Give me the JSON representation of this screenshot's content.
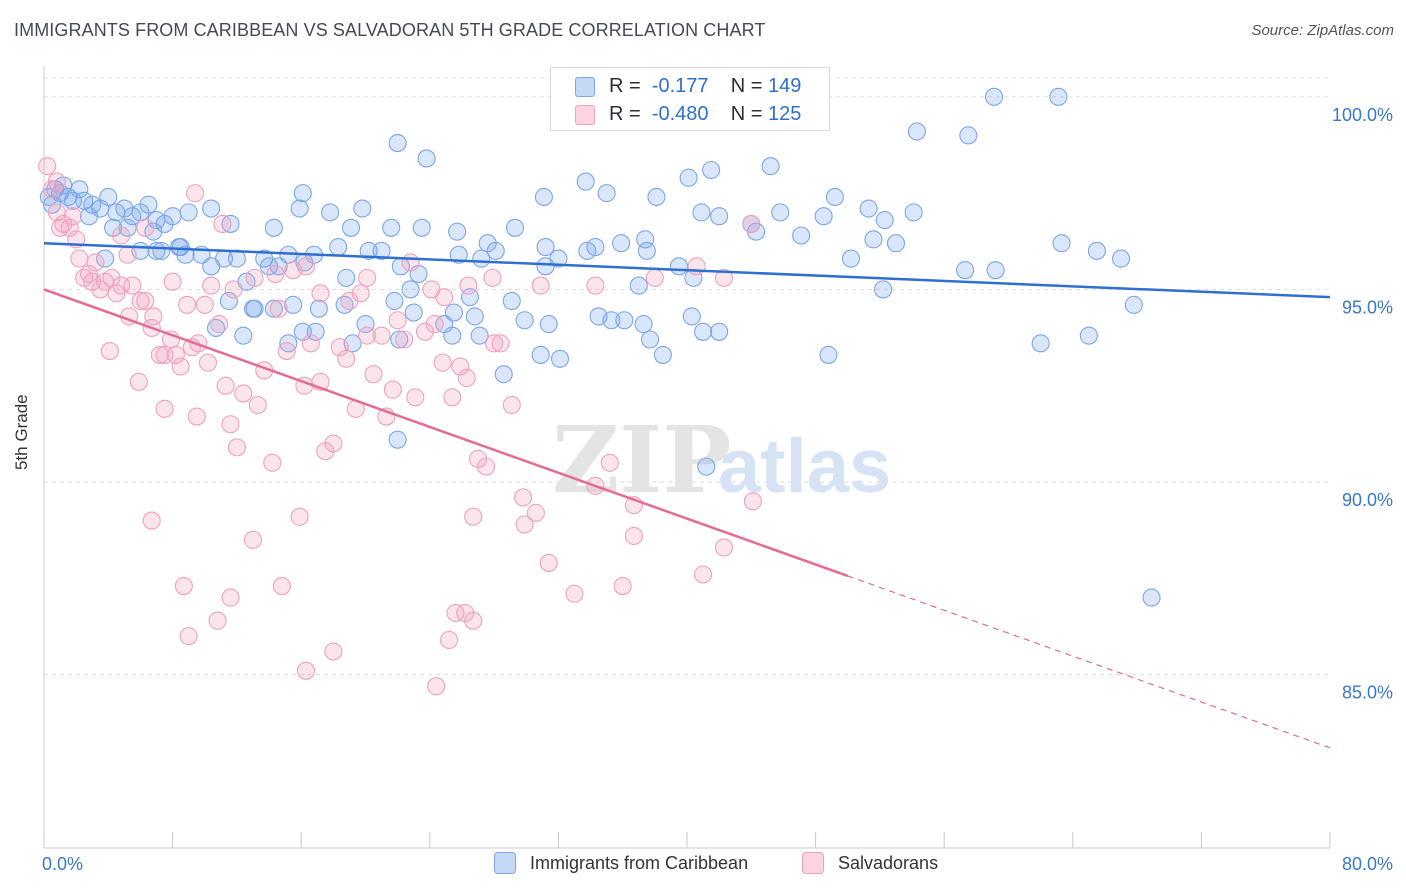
{
  "header": {
    "title": "IMMIGRANTS FROM CARIBBEAN VS SALVADORAN 5TH GRADE CORRELATION CHART",
    "source": "Source: ZipAtlas.com"
  },
  "watermark": {
    "zip": "ZIP",
    "atlas": "atlas"
  },
  "legend_top": {
    "rows": [
      {
        "r_label": "R =",
        "r_value": "-0.177",
        "n_label": "N =",
        "n_value": "149",
        "color": "#7aa7e8"
      },
      {
        "r_label": "R =",
        "r_value": "-0.480",
        "n_label": "N =",
        "n_value": "125",
        "color": "#f0a0bd"
      }
    ]
  },
  "legend_bottom": {
    "items": [
      {
        "label": "Immigrants from Caribbean",
        "color": "#7aa7e8"
      },
      {
        "label": "Salvadorans",
        "color": "#f0a0bd"
      }
    ]
  },
  "chart_data": {
    "type": "scatter",
    "title": "IMMIGRANTS FROM CARIBBEAN VS SALVADORAN 5TH GRADE CORRELATION CHART",
    "xlabel": "",
    "ylabel": "5th Grade",
    "xlim": [
      0,
      80
    ],
    "ylim": [
      80.5,
      100.8
    ],
    "x_tick_labels": [
      "0.0%",
      "80.0%"
    ],
    "y_ticks": [
      85,
      90,
      95,
      100
    ],
    "y_tick_labels": [
      "85.0%",
      "90.0%",
      "95.0%",
      "100.0%"
    ],
    "grid": true,
    "series": [
      {
        "name": "Immigrants from Caribbean",
        "color": "#7aa7e8",
        "trend": {
          "x": [
            0,
            80
          ],
          "y": [
            96.2,
            94.8
          ],
          "dashed_after": 80
        },
        "points": [
          [
            0.3,
            97.4
          ],
          [
            0.5,
            97.2
          ],
          [
            0.7,
            97.6
          ],
          [
            1.0,
            97.5
          ],
          [
            1.2,
            97.7
          ],
          [
            1.5,
            97.4
          ],
          [
            1.8,
            97.3
          ],
          [
            2.2,
            97.6
          ],
          [
            2.5,
            97.3
          ],
          [
            3.0,
            97.2
          ],
          [
            3.5,
            97.1
          ],
          [
            4.0,
            97.4
          ],
          [
            4.5,
            97.0
          ],
          [
            5.0,
            97.1
          ],
          [
            5.5,
            96.9
          ],
          [
            6.0,
            97.0
          ],
          [
            6.5,
            97.2
          ],
          [
            7.0,
            96.8
          ],
          [
            7.5,
            96.7
          ],
          [
            8.0,
            96.9
          ],
          [
            8.5,
            96.1
          ],
          [
            9.0,
            97.0
          ],
          [
            2.8,
            96.9
          ],
          [
            4.3,
            96.6
          ],
          [
            5.2,
            96.6
          ],
          [
            6.8,
            96.5
          ],
          [
            3.8,
            95.8
          ],
          [
            7.3,
            96.0
          ],
          [
            8.8,
            95.9
          ],
          [
            9.8,
            95.9
          ],
          [
            10.4,
            95.6
          ],
          [
            11.2,
            95.8
          ],
          [
            12.0,
            95.8
          ],
          [
            13.7,
            95.8
          ],
          [
            14.6,
            95.6
          ],
          [
            15.2,
            95.9
          ],
          [
            16.8,
            95.9
          ],
          [
            18.3,
            96.1
          ],
          [
            20.2,
            96.0
          ],
          [
            21.0,
            96.0
          ],
          [
            22.2,
            95.6
          ],
          [
            23.3,
            95.4
          ],
          [
            25.8,
            95.9
          ],
          [
            27.2,
            95.8
          ],
          [
            28.1,
            96.0
          ],
          [
            31.2,
            95.6
          ],
          [
            32.0,
            95.8
          ],
          [
            33.8,
            96.0
          ],
          [
            35.9,
            96.2
          ],
          [
            37.5,
            96.0
          ],
          [
            40.4,
            95.3
          ],
          [
            12.6,
            95.2
          ],
          [
            14.0,
            95.6
          ],
          [
            16.2,
            95.7
          ],
          [
            18.8,
            95.3
          ],
          [
            22.8,
            95.0
          ],
          [
            26.5,
            94.8
          ],
          [
            29.1,
            94.7
          ],
          [
            34.5,
            94.3
          ],
          [
            37.0,
            95.1
          ],
          [
            11.5,
            94.7
          ],
          [
            13.1,
            94.5
          ],
          [
            14.3,
            94.5
          ],
          [
            15.5,
            94.6
          ],
          [
            17.1,
            94.5
          ],
          [
            18.7,
            94.6
          ],
          [
            20.0,
            94.1
          ],
          [
            21.8,
            94.7
          ],
          [
            23.0,
            94.4
          ],
          [
            24.9,
            94.1
          ],
          [
            26.8,
            94.3
          ],
          [
            29.9,
            94.2
          ],
          [
            31.4,
            94.1
          ],
          [
            35.3,
            94.2
          ],
          [
            37.7,
            93.7
          ],
          [
            40.3,
            94.3
          ],
          [
            41.0,
            93.9
          ],
          [
            10.7,
            94.0
          ],
          [
            12.4,
            93.8
          ],
          [
            13.0,
            94.5
          ],
          [
            15.2,
            93.6
          ],
          [
            16.1,
            93.9
          ],
          [
            16.9,
            93.9
          ],
          [
            19.2,
            93.6
          ],
          [
            22.1,
            93.7
          ],
          [
            25.4,
            93.8
          ],
          [
            27.1,
            93.8
          ],
          [
            28.6,
            92.8
          ],
          [
            30.9,
            93.3
          ],
          [
            32.1,
            93.2
          ],
          [
            38.5,
            93.3
          ],
          [
            48.8,
            93.3
          ],
          [
            62.0,
            93.6
          ],
          [
            65.0,
            93.8
          ],
          [
            67.8,
            94.6
          ],
          [
            52.2,
            95.0
          ],
          [
            57.3,
            95.5
          ],
          [
            59.2,
            95.5
          ],
          [
            63.3,
            96.2
          ],
          [
            65.5,
            96.0
          ],
          [
            67.0,
            95.8
          ],
          [
            51.6,
            96.3
          ],
          [
            50.2,
            95.8
          ],
          [
            53.0,
            96.2
          ],
          [
            47.1,
            96.4
          ],
          [
            44.3,
            96.5
          ],
          [
            42.0,
            96.9
          ],
          [
            40.9,
            97.0
          ],
          [
            39.5,
            95.6
          ],
          [
            37.4,
            96.3
          ],
          [
            34.3,
            96.1
          ],
          [
            31.2,
            96.1
          ],
          [
            29.3,
            96.6
          ],
          [
            27.6,
            96.2
          ],
          [
            25.7,
            96.5
          ],
          [
            23.5,
            96.6
          ],
          [
            21.6,
            96.6
          ],
          [
            19.1,
            96.6
          ],
          [
            17.8,
            97.0
          ],
          [
            15.9,
            97.1
          ],
          [
            14.3,
            96.6
          ],
          [
            44.0,
            96.7
          ],
          [
            45.8,
            97.0
          ],
          [
            48.5,
            96.9
          ],
          [
            49.2,
            97.4
          ],
          [
            51.3,
            97.1
          ],
          [
            52.3,
            96.8
          ],
          [
            54.1,
            97.0
          ],
          [
            54.3,
            99.1
          ],
          [
            57.5,
            99.0
          ],
          [
            63.1,
            100.0
          ],
          [
            59.1,
            100.0
          ],
          [
            45.2,
            98.2
          ],
          [
            41.5,
            98.1
          ],
          [
            40.1,
            97.9
          ],
          [
            38.1,
            97.4
          ],
          [
            35.0,
            97.5
          ],
          [
            33.7,
            97.8
          ],
          [
            31.1,
            97.4
          ],
          [
            23.8,
            98.4
          ],
          [
            22.0,
            98.8
          ],
          [
            19.8,
            97.1
          ],
          [
            16.1,
            97.5
          ],
          [
            11.6,
            96.7
          ],
          [
            10.4,
            97.1
          ],
          [
            8.4,
            96.1
          ],
          [
            7.0,
            96.0
          ],
          [
            6.0,
            96.0
          ],
          [
            41.2,
            90.4
          ],
          [
            68.9,
            87.0
          ],
          [
            22.0,
            91.1
          ],
          [
            25.5,
            94.4
          ],
          [
            36.1,
            94.2
          ],
          [
            37.3,
            94.1
          ],
          [
            42.0,
            93.9
          ]
        ]
      },
      {
        "name": "Salvadorans",
        "color": "#f0a0bd",
        "trend": {
          "x": [
            0,
            80
          ],
          "y": [
            95.0,
            83.1
          ],
          "solid_to": 50
        },
        "points": [
          [
            0.2,
            98.2
          ],
          [
            0.5,
            97.6
          ],
          [
            0.8,
            97.0
          ],
          [
            1.0,
            96.6
          ],
          [
            1.2,
            96.7
          ],
          [
            1.6,
            96.6
          ],
          [
            1.8,
            96.9
          ],
          [
            2.0,
            96.3
          ],
          [
            2.2,
            95.8
          ],
          [
            2.5,
            95.3
          ],
          [
            2.8,
            95.4
          ],
          [
            3.0,
            95.2
          ],
          [
            3.2,
            95.7
          ],
          [
            3.5,
            95.0
          ],
          [
            3.8,
            95.2
          ],
          [
            4.2,
            95.3
          ],
          [
            4.5,
            94.9
          ],
          [
            4.8,
            95.1
          ],
          [
            5.2,
            95.9
          ],
          [
            5.5,
            95.1
          ],
          [
            6.0,
            94.7
          ],
          [
            6.3,
            94.7
          ],
          [
            6.8,
            94.3
          ],
          [
            7.2,
            93.3
          ],
          [
            7.5,
            93.3
          ],
          [
            7.9,
            93.7
          ],
          [
            8.2,
            93.3
          ],
          [
            8.5,
            93.0
          ],
          [
            8.9,
            94.6
          ],
          [
            9.2,
            93.5
          ],
          [
            9.6,
            93.6
          ],
          [
            10.2,
            93.1
          ],
          [
            10.4,
            95.1
          ],
          [
            10.9,
            94.1
          ],
          [
            11.3,
            92.5
          ],
          [
            11.6,
            91.5
          ],
          [
            12.0,
            90.9
          ],
          [
            12.4,
            92.3
          ],
          [
            13.3,
            92.0
          ],
          [
            13.7,
            92.9
          ],
          [
            14.2,
            90.5
          ],
          [
            14.6,
            94.5
          ],
          [
            15.1,
            93.4
          ],
          [
            15.5,
            95.5
          ],
          [
            16.2,
            92.5
          ],
          [
            16.6,
            93.6
          ],
          [
            17.2,
            92.6
          ],
          [
            17.5,
            90.8
          ],
          [
            18.0,
            91.0
          ],
          [
            18.4,
            93.5
          ],
          [
            18.8,
            93.2
          ],
          [
            19.4,
            91.9
          ],
          [
            19.7,
            94.9
          ],
          [
            20.1,
            93.8
          ],
          [
            20.5,
            92.8
          ],
          [
            21.0,
            93.8
          ],
          [
            21.3,
            91.7
          ],
          [
            21.7,
            92.4
          ],
          [
            22.0,
            94.2
          ],
          [
            22.4,
            93.7
          ],
          [
            23.1,
            92.2
          ],
          [
            23.7,
            93.9
          ],
          [
            24.3,
            94.1
          ],
          [
            24.8,
            93.1
          ],
          [
            25.4,
            92.2
          ],
          [
            25.9,
            93.0
          ],
          [
            26.3,
            92.7
          ],
          [
            26.7,
            89.1
          ],
          [
            27.0,
            90.6
          ],
          [
            27.5,
            90.4
          ],
          [
            28.0,
            93.6
          ],
          [
            28.4,
            93.6
          ],
          [
            29.1,
            92.0
          ],
          [
            29.9,
            88.9
          ],
          [
            30.6,
            89.2
          ],
          [
            31.4,
            87.9
          ],
          [
            33.0,
            87.1
          ],
          [
            35.2,
            90.5
          ],
          [
            36.0,
            87.3
          ],
          [
            36.7,
            88.6
          ],
          [
            41.0,
            87.6
          ],
          [
            42.3,
            88.3
          ],
          [
            44.1,
            89.5
          ],
          [
            36.7,
            89.4
          ],
          [
            34.3,
            89.9
          ],
          [
            29.8,
            89.6
          ],
          [
            26.2,
            86.6
          ],
          [
            26.7,
            86.4
          ],
          [
            25.6,
            86.6
          ],
          [
            25.2,
            85.9
          ],
          [
            24.4,
            84.7
          ],
          [
            18.0,
            85.6
          ],
          [
            16.3,
            85.1
          ],
          [
            15.9,
            89.1
          ],
          [
            14.8,
            87.3
          ],
          [
            13.0,
            88.5
          ],
          [
            11.6,
            87.0
          ],
          [
            10.8,
            86.4
          ],
          [
            9.0,
            86.0
          ],
          [
            8.7,
            87.3
          ],
          [
            6.7,
            89.0
          ],
          [
            9.5,
            91.7
          ],
          [
            7.5,
            91.9
          ],
          [
            5.9,
            92.6
          ],
          [
            4.1,
            93.4
          ],
          [
            5.3,
            94.3
          ],
          [
            6.7,
            94.0
          ],
          [
            8.0,
            95.2
          ],
          [
            10.0,
            94.6
          ],
          [
            11.8,
            95.0
          ],
          [
            13.1,
            95.3
          ],
          [
            14.4,
            95.4
          ],
          [
            16.3,
            95.6
          ],
          [
            17.2,
            94.9
          ],
          [
            19.0,
            94.7
          ],
          [
            20.1,
            95.3
          ],
          [
            22.8,
            95.7
          ],
          [
            24.1,
            95.0
          ],
          [
            24.9,
            94.8
          ],
          [
            26.4,
            95.1
          ],
          [
            27.9,
            95.3
          ],
          [
            30.9,
            95.1
          ],
          [
            34.3,
            95.1
          ],
          [
            38.0,
            95.3
          ],
          [
            40.6,
            95.6
          ],
          [
            42.3,
            95.3
          ],
          [
            44.0,
            96.7
          ],
          [
            4.8,
            96.4
          ],
          [
            6.3,
            96.6
          ],
          [
            9.4,
            97.5
          ],
          [
            11.1,
            96.7
          ],
          [
            0.8,
            97.8
          ]
        ]
      }
    ]
  }
}
